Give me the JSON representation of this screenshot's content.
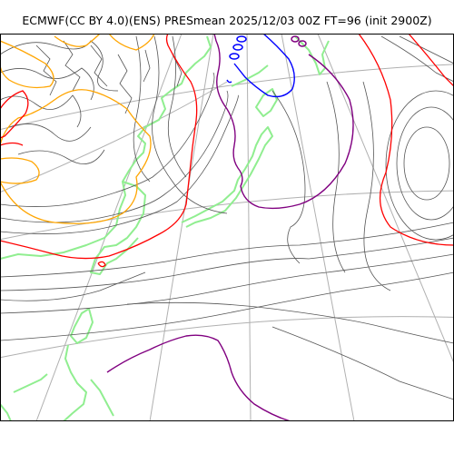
{
  "title": "ECMWF(CC BY 4.0)(ENS) PRESmean 2025/12/03 00Z FT=96 (init 2900Z)",
  "colors": {
    "grid": "#b0b0b0",
    "coast": "#90ee90",
    "isobar": "#555555",
    "red": "#ff0000",
    "orange": "#ffa500",
    "purple": "#800080",
    "blue": "#0000ff",
    "frame": "#000000"
  }
}
